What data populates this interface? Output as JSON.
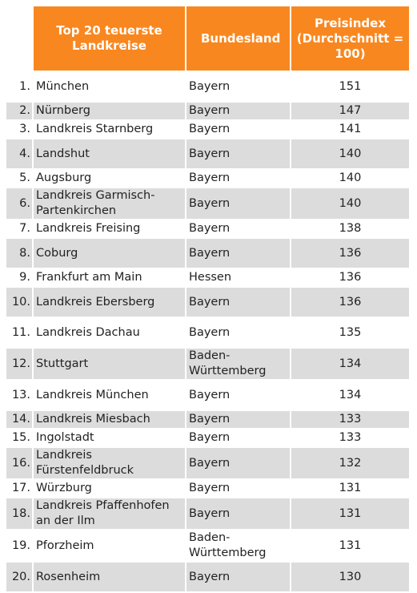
{
  "header": {
    "name": "Top 20 teuerste Landkreise",
    "state": "Bundesland",
    "index": "Preisindex (Durchschnitt = 100)"
  },
  "rows": [
    {
      "rank": "1.",
      "name": "München",
      "state": "Bayern",
      "index": "151"
    },
    {
      "rank": "2.",
      "name": "Nürnberg",
      "state": "Bayern",
      "index": "147"
    },
    {
      "rank": "3.",
      "name": "Landkreis Starnberg",
      "state": "Bayern",
      "index": "141"
    },
    {
      "rank": "4.",
      "name": "Landshut",
      "state": "Bayern",
      "index": "140"
    },
    {
      "rank": "5.",
      "name": "Augsburg",
      "state": "Bayern",
      "index": "140"
    },
    {
      "rank": "6.",
      "name": "Landkreis Garmisch-Partenkirchen",
      "state": "Bayern",
      "index": "140"
    },
    {
      "rank": "7.",
      "name": "Landkreis Freising",
      "state": "Bayern",
      "index": "138"
    },
    {
      "rank": "8.",
      "name": "Coburg",
      "state": "Bayern",
      "index": "136"
    },
    {
      "rank": "9.",
      "name": "Frankfurt am Main",
      "state": "Hessen",
      "index": "136"
    },
    {
      "rank": "10.",
      "name": "Landkreis Ebersberg",
      "state": "Bayern",
      "index": "136"
    },
    {
      "rank": "11.",
      "name": "Landkreis Dachau",
      "state": "Bayern",
      "index": "135"
    },
    {
      "rank": "12.",
      "name": "Stuttgart",
      "state": "Baden-Württemberg",
      "index": "134"
    },
    {
      "rank": "13.",
      "name": "Landkreis München",
      "state": "Bayern",
      "index": "134"
    },
    {
      "rank": "14.",
      "name": "Landkreis Miesbach",
      "state": "Bayern",
      "index": "133"
    },
    {
      "rank": "15.",
      "name": "Ingolstadt",
      "state": "Bayern",
      "index": "133"
    },
    {
      "rank": "16.",
      "name": "Landkreis Fürstenfeldbruck",
      "state": "Bayern",
      "index": "132"
    },
    {
      "rank": "17.",
      "name": "Würzburg",
      "state": "Bayern",
      "index": "131"
    },
    {
      "rank": "18.",
      "name": "Landkreis Pfaffenhofen an der Ilm",
      "state": "Bayern",
      "index": "131"
    },
    {
      "rank": "19.",
      "name": "Pforzheim",
      "state": "Baden-Württemberg",
      "index": "131"
    },
    {
      "rank": "20.",
      "name": "Rosenheim",
      "state": "Bayern",
      "index": "130"
    }
  ],
  "colors": {
    "header_bg": "#f9871f",
    "header_text": "#ffffff",
    "row_stripe": "#dcdcdc"
  }
}
